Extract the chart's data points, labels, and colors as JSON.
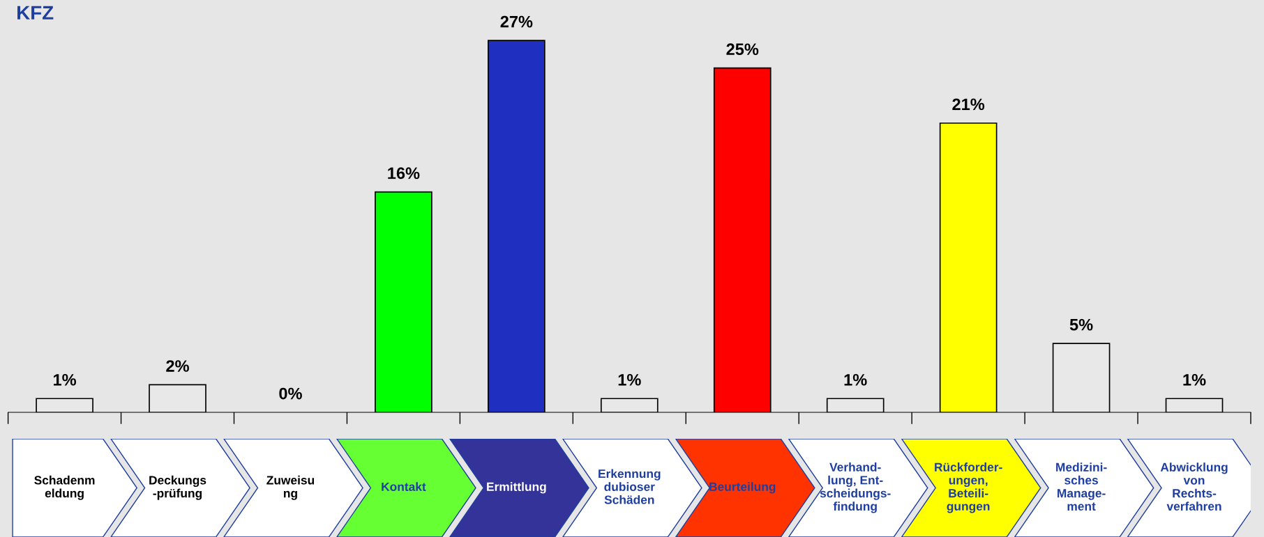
{
  "chart_data": {
    "type": "bar",
    "title": "KFZ",
    "categories": [
      "Schadenm\neldung",
      "Deckungs\n-prüfung",
      "Zuweisu\nng",
      "Kontakt",
      "Ermittlung",
      "Erkennung\ndubioser\nSchäden",
      "Beurteilung",
      "Verhand-\nlung, Ent-\nscheidungs-\nfindung",
      "Rückforder-\nungen,\nBeteili-\ngungen",
      "Medizini-\nsches\nManage-\nment",
      "Abwicklung\nvon\nRechts-\nverfahren"
    ],
    "values": [
      1,
      2,
      0,
      16,
      27,
      1,
      25,
      1,
      21,
      5,
      1
    ],
    "colors": [
      "#e8e8e8",
      "#e8e8e8",
      "#e8e8e8",
      "#00ff00",
      "#1f2fbf",
      "#e8e8e8",
      "#ff0000",
      "#e8e8e8",
      "#ffff00",
      "#e8e8e8",
      "#e8e8e8"
    ],
    "value_labels": [
      "1%",
      "2%",
      "0%",
      "16%",
      "27%",
      "1%",
      "25%",
      "1%",
      "21%",
      "5%",
      "1%"
    ],
    "tick_labels": "x",
    "grid": false
  }
}
